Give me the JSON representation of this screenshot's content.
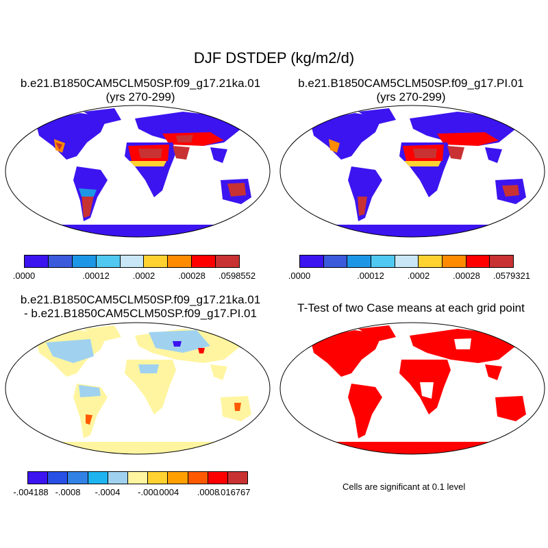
{
  "title": "DJF DSTDEP (kg/m2/d)",
  "panels": [
    {
      "id": "case1",
      "title_line1": "b.e21.B1850CAM5CLM50SP.f09_g17.21ka.01",
      "title_line2": "(yrs 270-299)",
      "colorbar": {
        "colors": [
          "#3c14f0",
          "#3c5adc",
          "#1e96e6",
          "#50c8f0",
          "#c8e6f5",
          "#ffd232",
          "#ff8c00",
          "#ff0000",
          "#c83232"
        ],
        "tick_labels": [
          ".0000",
          ".00012",
          ".0002",
          ".00028",
          ".0598552"
        ]
      }
    },
    {
      "id": "case2",
      "title_line1": "b.e21.B1850CAM5CLM50SP.f09_g17.PI.01",
      "title_line2": "(yrs 270-299)",
      "colorbar": {
        "colors": [
          "#3c14f0",
          "#3c5adc",
          "#1e96e6",
          "#50c8f0",
          "#c8e6f5",
          "#ffd232",
          "#ff8c00",
          "#ff0000",
          "#c83232"
        ],
        "tick_labels": [
          ".0000",
          ".00012",
          ".0002",
          ".00028",
          ".0579321"
        ]
      }
    },
    {
      "id": "difference",
      "title_line1": "b.e21.B1850CAM5CLM50SP.f09_g17.21ka.01",
      "title_line2": "- b.e21.B1850CAM5CLM50SP.f09_g17.PI.01",
      "colorbar": {
        "colors": [
          "#3c14f0",
          "#2850e6",
          "#3282e6",
          "#1eb4f0",
          "#a0d2f0",
          "#fff5a0",
          "#ffd232",
          "#ffa000",
          "#ff5a00",
          "#ff0000",
          "#c83232"
        ],
        "tick_labels": [
          "-.004188",
          "-.0008",
          "-.0004",
          "-.000",
          ".0004",
          ".0008",
          ".016767"
        ]
      }
    },
    {
      "id": "ttest",
      "title_line1": "T-Test of two Case means at each grid point",
      "note": "Cells are significant at 0.1 level"
    }
  ]
}
